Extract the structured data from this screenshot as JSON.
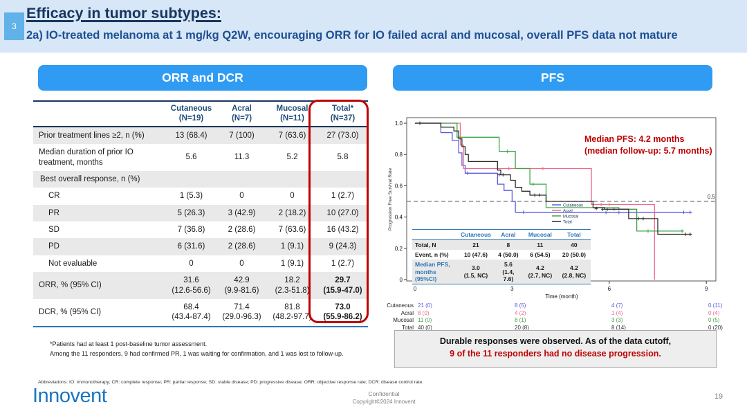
{
  "header": {
    "badge": "3",
    "title": "Efficacy in tumor subtypes:",
    "subtitle": "2a) IO-treated melanoma at 1 mg/kg Q2W, encouraging ORR for IO failed acral and mucosal, overall PFS data not mature"
  },
  "left_panel": {
    "title": "ORR and DCR",
    "table": {
      "col_headers": [
        {
          "line1": "Cutaneous",
          "line2": "(N=19)"
        },
        {
          "line1": "Acral",
          "line2": "(N=7)"
        },
        {
          "line1": "Mucosal",
          "line2": "(N=11)"
        },
        {
          "line1": "Total*",
          "line2": "(N=37)"
        }
      ],
      "rows": [
        {
          "label": "Prior treatment lines ≥2, n (%)",
          "values": [
            "13 (68.4)",
            "7 (100)",
            "7 (63.6)",
            "27 (73.0)"
          ]
        },
        {
          "label": "Median duration of prior IO treatment, months",
          "values": [
            "5.6",
            "11.3",
            "5.2",
            "5.8"
          ]
        },
        {
          "label": "Best overall response,  n (%)",
          "section": true,
          "values": [
            "",
            "",
            "",
            ""
          ]
        },
        {
          "label": "CR",
          "indent": true,
          "values": [
            "1 (5.3)",
            "0",
            "0",
            "1 (2.7)"
          ]
        },
        {
          "label": "PR",
          "indent": true,
          "values": [
            "5 (26.3)",
            "3 (42.9)",
            "2 (18.2)",
            "10 (27.0)"
          ]
        },
        {
          "label": "SD",
          "indent": true,
          "values": [
            "7 (36.8)",
            "2 (28.6)",
            "7 (63.6)",
            "16 (43.2)"
          ]
        },
        {
          "label": "PD",
          "indent": true,
          "values": [
            "6 (31.6)",
            "2 (28.6)",
            "1 (9.1)",
            "9 (24.3)"
          ]
        },
        {
          "label": "Not evaluable",
          "indent": true,
          "values": [
            "0",
            "0",
            "1 (9.1)",
            "1 (2.7)"
          ]
        },
        {
          "label": "ORR, % (95% CI)",
          "bold_last": true,
          "values": [
            "31.6|(12.6-56.6)",
            "42.9|(9.9-81.6)",
            "18.2|(2.3-51.8)",
            "29.7|(15.9-47.0)"
          ]
        },
        {
          "label": "DCR, % (95% CI)",
          "bold_last": true,
          "values": [
            "68.4|(43.4-87.4)",
            "71.4|(29.0-96.3)",
            "81.8|(48.2-97.7)",
            "73.0|(55.9-86.2)"
          ]
        }
      ]
    },
    "footnotes": [
      "*Patients had at least 1 post-baseline tumor assessment.",
      "Among the 11 responders, 9 had confirmed PR, 1 was waiting for confirmation, and 1 was lost to follow-up."
    ]
  },
  "right_panel": {
    "title": "PFS",
    "annotation": [
      "Median PFS: 4.2 months",
      "(median follow-up: 5.7 months)"
    ],
    "inset_table": {
      "col_headers": [
        "Cutaneous",
        "Acral",
        "Mucosal",
        "Total"
      ],
      "rows": [
        {
          "label": "Total, N",
          "values": [
            "21",
            "8",
            "11",
            "40"
          ]
        },
        {
          "label": "Event, n (%)",
          "values": [
            "10 (47.6)",
            "4 (50.0)",
            "6 (54.5)",
            "20 (50.0)"
          ]
        },
        {
          "label": "Median PFS,|months (95%CI)",
          "blue_label": true,
          "values": [
            "3.0|(1.5, NC)",
            "5.6|(1.4, 7.6)",
            "4.2|(2.7, NC)",
            "4.2|(2.8, NC)"
          ]
        }
      ]
    },
    "at_risk": {
      "rows": [
        {
          "label": "Cutaneous",
          "series": "Cutaneous",
          "values": [
            "21 (0)",
            "8 (5)",
            "4 (7)",
            "0 (11)"
          ]
        },
        {
          "label": "Acral",
          "series": "Acral",
          "values": [
            "8 (0)",
            "4 (2)",
            "1 (4)",
            "0 (4)"
          ]
        },
        {
          "label": "Mucosal",
          "series": "Mucosal",
          "values": [
            "11 (0)",
            "8 (1)",
            "3 (3)",
            "0 (5)"
          ]
        },
        {
          "label": "Total",
          "series": "Total",
          "values": [
            "40 (0)",
            "20 (8)",
            "8 (14)",
            "0 (20)"
          ]
        }
      ]
    },
    "message": [
      "Durable responses were observed. As of the data cutoff,",
      "9 of the 11 responders had no disease progression."
    ]
  },
  "chart_data": {
    "type": "line",
    "subtype": "kaplan-meier-step",
    "title": "PFS",
    "xlabel": "Time (month)",
    "ylabel": "Progression Free Survival Rate",
    "xlim": [
      0,
      9.5
    ],
    "xticks": [
      0,
      3,
      6,
      9
    ],
    "ylim": [
      0,
      1.0
    ],
    "yticks": [
      1.0,
      0.8,
      0.6,
      0.4,
      0.2,
      0
    ],
    "ytick_labels": [
      "1.0",
      "0.8",
      "0.6",
      "0.4",
      "0.2",
      "0"
    ],
    "reference_line_y": 0.5,
    "reference_label": "0.5",
    "legend_position": "inside-center",
    "legend": [
      "Cutaneous",
      "Acral",
      "Mucosal",
      "Total"
    ],
    "series": [
      {
        "name": "Cutaneous",
        "color": "#5a5ae0",
        "steps": [
          [
            0,
            1.0
          ],
          [
            0.8,
            0.94
          ],
          [
            1.15,
            0.89
          ],
          [
            1.35,
            0.81
          ],
          [
            1.45,
            0.73
          ],
          [
            1.55,
            0.68
          ],
          [
            2.55,
            0.61
          ],
          [
            2.75,
            0.57
          ],
          [
            3.0,
            0.5
          ],
          [
            3.1,
            0.43
          ],
          [
            8.55,
            0.43
          ]
        ],
        "censors": [
          [
            1.62,
            0.68
          ],
          [
            3.35,
            0.43
          ],
          [
            5.9,
            0.43
          ],
          [
            6.3,
            0.43
          ],
          [
            8.3,
            0.43
          ],
          [
            8.5,
            0.43
          ]
        ]
      },
      {
        "name": "Acral",
        "color": "#ee6a8a",
        "steps": [
          [
            0,
            1.0
          ],
          [
            1.4,
            0.86
          ],
          [
            1.5,
            0.71
          ],
          [
            5.45,
            0.48
          ],
          [
            7.4,
            0.48
          ],
          [
            7.4,
            0.0
          ]
        ],
        "censors": [
          [
            2.9,
            0.71
          ],
          [
            3.95,
            0.71
          ],
          [
            5.75,
            0.48
          ],
          [
            6.0,
            0.48
          ]
        ]
      },
      {
        "name": "Mucosal",
        "color": "#3fa348",
        "steps": [
          [
            0,
            1.0
          ],
          [
            1.3,
            0.91
          ],
          [
            2.6,
            0.82
          ],
          [
            3.1,
            0.71
          ],
          [
            3.55,
            0.61
          ],
          [
            4.05,
            0.46
          ],
          [
            6.3,
            0.45
          ],
          [
            6.85,
            0.31
          ],
          [
            8.3,
            0.31
          ]
        ],
        "censors": [
          [
            2.85,
            0.82
          ],
          [
            3.65,
            0.61
          ],
          [
            5.95,
            0.45
          ],
          [
            6.15,
            0.45
          ],
          [
            7.2,
            0.31
          ],
          [
            8.25,
            0.31
          ]
        ]
      },
      {
        "name": "Total",
        "color": "#2b2b2b",
        "steps": [
          [
            0,
            1.0
          ],
          [
            0.8,
            0.975
          ],
          [
            1.2,
            0.95
          ],
          [
            1.35,
            0.9
          ],
          [
            1.45,
            0.85
          ],
          [
            1.55,
            0.8
          ],
          [
            1.65,
            0.755
          ],
          [
            2.55,
            0.7
          ],
          [
            2.65,
            0.67
          ],
          [
            2.95,
            0.635
          ],
          [
            3.1,
            0.59
          ],
          [
            3.3,
            0.565
          ],
          [
            3.55,
            0.54
          ],
          [
            4.05,
            0.5
          ],
          [
            5.5,
            0.46
          ],
          [
            5.85,
            0.45
          ],
          [
            6.6,
            0.39
          ],
          [
            7.5,
            0.29
          ],
          [
            8.55,
            0.29
          ]
        ],
        "censors": [
          [
            0.15,
            1.0
          ],
          [
            2.6,
            0.67
          ],
          [
            2.72,
            0.67
          ],
          [
            3.7,
            0.54
          ],
          [
            3.85,
            0.54
          ],
          [
            5.6,
            0.455
          ],
          [
            5.8,
            0.45
          ],
          [
            6.9,
            0.39
          ],
          [
            7.05,
            0.39
          ],
          [
            8.35,
            0.29
          ],
          [
            8.5,
            0.29
          ]
        ]
      }
    ]
  },
  "footer": {
    "abbreviations": "Abbreviations: IO: immunotherapy; CR: complete response; PR: partial response; SD: stable disease; PD: progressive disease; ORR:  objective response rate; DCR: disease control rate.",
    "logo_text": "Innovent",
    "confidential": "Confidential",
    "copyright": "Copyright©2024  Innovent",
    "page_number": "19"
  }
}
